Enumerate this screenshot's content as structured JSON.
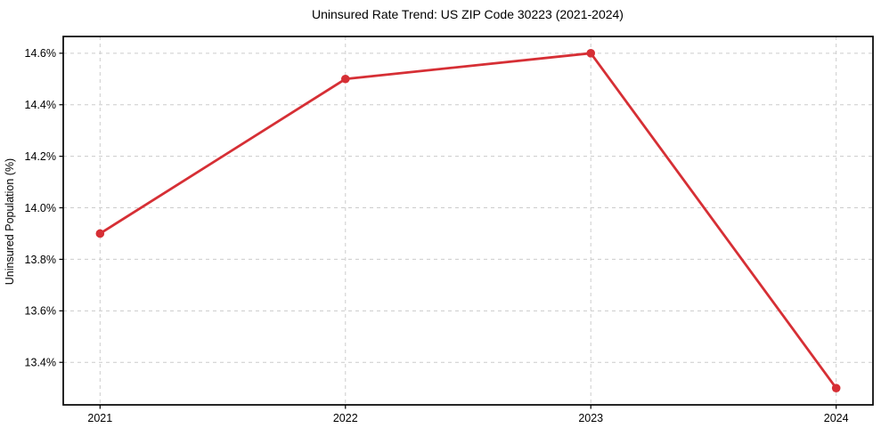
{
  "chart_data": {
    "type": "line",
    "title": "Uninsured Rate Trend: US ZIP Code 30223 (2021-2024)",
    "xlabel": "",
    "ylabel": "Uninsured Population (%)",
    "x": [
      2021,
      2022,
      2023,
      2024
    ],
    "series": [
      {
        "name": "uninsured-rate",
        "values": [
          13.9,
          14.5,
          14.6,
          13.3
        ],
        "color": "#d62f35",
        "marker": "circle"
      }
    ],
    "xticks": {
      "values": [
        2021,
        2022,
        2023,
        2024
      ],
      "labels": [
        "2021",
        "2022",
        "2023",
        "2024"
      ]
    },
    "yticks": {
      "values": [
        13.4,
        13.6,
        13.8,
        14.0,
        14.2,
        14.4,
        14.6
      ],
      "labels": [
        "13.4%",
        "13.6%",
        "13.8%",
        "14.0%",
        "14.2%",
        "14.4%",
        "14.6%"
      ]
    },
    "xlim": [
      2020.85,
      2024.15
    ],
    "ylim": [
      13.235,
      14.665
    ],
    "grid": true,
    "grid_style": "dashed",
    "legend": "none",
    "colors": {
      "line": "#d62f35",
      "grid": "#cccccc",
      "axis": "#000000",
      "text": "#000000",
      "background": "#ffffff"
    }
  }
}
